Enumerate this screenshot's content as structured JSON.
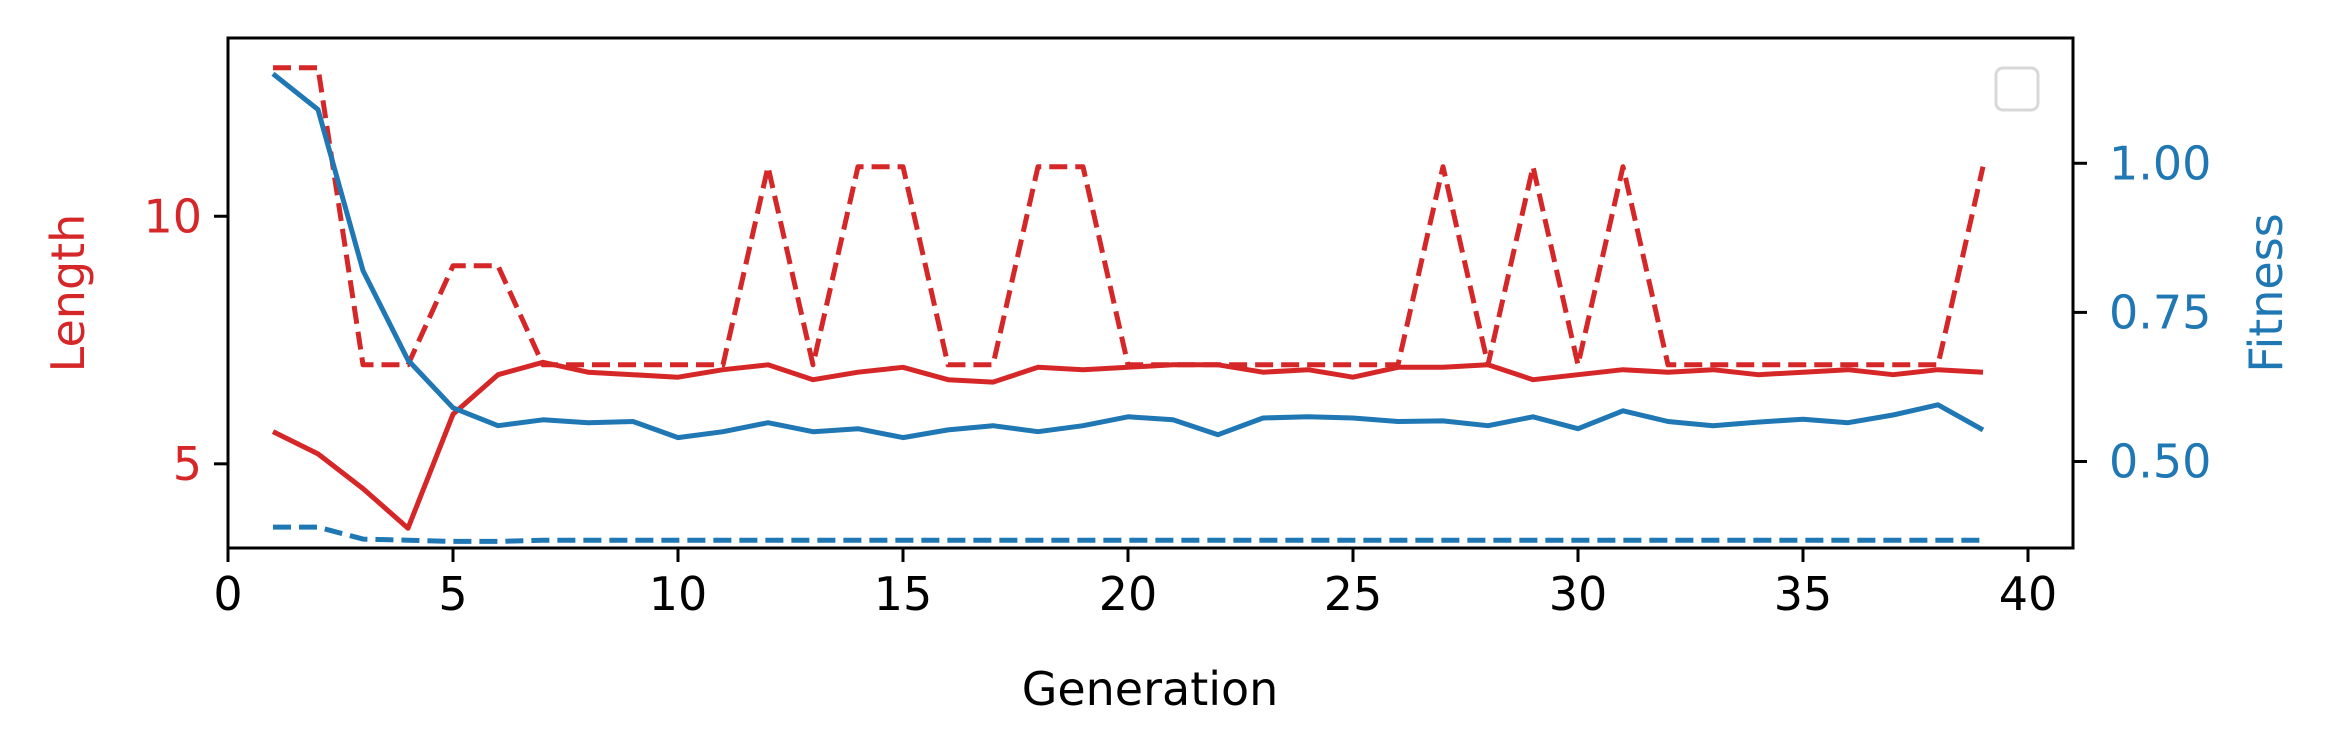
{
  "chart_data": {
    "type": "line",
    "xlabel": "Generation",
    "ylabel_left": "Length",
    "ylabel_right": "Fitness",
    "xlim": [
      0,
      41
    ],
    "ylim_left": [
      3.3,
      13.6
    ],
    "ylim_right": [
      0.355,
      1.21
    ],
    "x_ticks": [
      0,
      5,
      10,
      15,
      20,
      25,
      30,
      35,
      40
    ],
    "y_left_ticks": [
      5,
      10
    ],
    "y_right_ticks": [
      0.5,
      0.75,
      1.0
    ],
    "y_right_tick_labels": [
      "0.50",
      "0.75",
      "1.00"
    ],
    "grid": false,
    "legend": {
      "placement": "top-right",
      "entries": []
    },
    "colors": {
      "length": "#d62728",
      "fitness": "#1f77b4",
      "axis": "#000000"
    },
    "x": [
      1,
      2,
      3,
      4,
      5,
      6,
      7,
      8,
      9,
      10,
      11,
      12,
      13,
      14,
      15,
      16,
      17,
      18,
      19,
      20,
      21,
      22,
      23,
      24,
      25,
      26,
      27,
      28,
      29,
      30,
      31,
      32,
      33,
      34,
      35,
      36,
      37,
      38,
      39
    ],
    "series": [
      {
        "axis": "left",
        "style": "solid",
        "color": "#d62728",
        "values": [
          5.65,
          5.2,
          4.5,
          3.7,
          6.0,
          6.8,
          7.05,
          6.85,
          6.8,
          6.75,
          6.9,
          7.0,
          6.7,
          6.85,
          6.95,
          6.7,
          6.65,
          6.95,
          6.9,
          6.95,
          7.0,
          7.0,
          6.85,
          6.9,
          6.75,
          6.95,
          6.95,
          7.0,
          6.7,
          6.8,
          6.9,
          6.85,
          6.9,
          6.8,
          6.85,
          6.9,
          6.8,
          6.9,
          6.85
        ]
      },
      {
        "axis": "left",
        "style": "dashed",
        "color": "#d62728",
        "values": [
          13,
          13,
          7,
          7,
          9,
          9,
          7,
          7,
          7,
          7,
          7,
          11,
          7,
          11,
          11,
          7,
          7,
          11,
          11,
          7,
          7,
          7,
          7,
          7,
          7,
          7,
          11,
          7,
          11,
          7,
          11,
          7,
          7,
          7,
          7,
          7,
          7,
          7,
          11
        ]
      },
      {
        "axis": "right",
        "style": "solid",
        "color": "#1f77b4",
        "values": [
          1.15,
          1.09,
          0.82,
          0.67,
          0.59,
          0.56,
          0.57,
          0.565,
          0.567,
          0.54,
          0.55,
          0.565,
          0.55,
          0.555,
          0.54,
          0.553,
          0.56,
          0.55,
          0.56,
          0.575,
          0.57,
          0.545,
          0.573,
          0.575,
          0.573,
          0.567,
          0.568,
          0.56,
          0.575,
          0.555,
          0.585,
          0.567,
          0.56,
          0.566,
          0.571,
          0.565,
          0.578,
          0.595,
          0.553
        ]
      },
      {
        "axis": "right",
        "style": "dashed",
        "color": "#1f77b4",
        "values": [
          0.39,
          0.39,
          0.37,
          0.368,
          0.366,
          0.366,
          0.368,
          0.368,
          0.368,
          0.368,
          0.368,
          0.368,
          0.368,
          0.368,
          0.368,
          0.368,
          0.368,
          0.368,
          0.368,
          0.368,
          0.368,
          0.368,
          0.368,
          0.368,
          0.368,
          0.368,
          0.368,
          0.368,
          0.368,
          0.368,
          0.368,
          0.368,
          0.368,
          0.368,
          0.368,
          0.368,
          0.368,
          0.368,
          0.368
        ]
      }
    ]
  }
}
